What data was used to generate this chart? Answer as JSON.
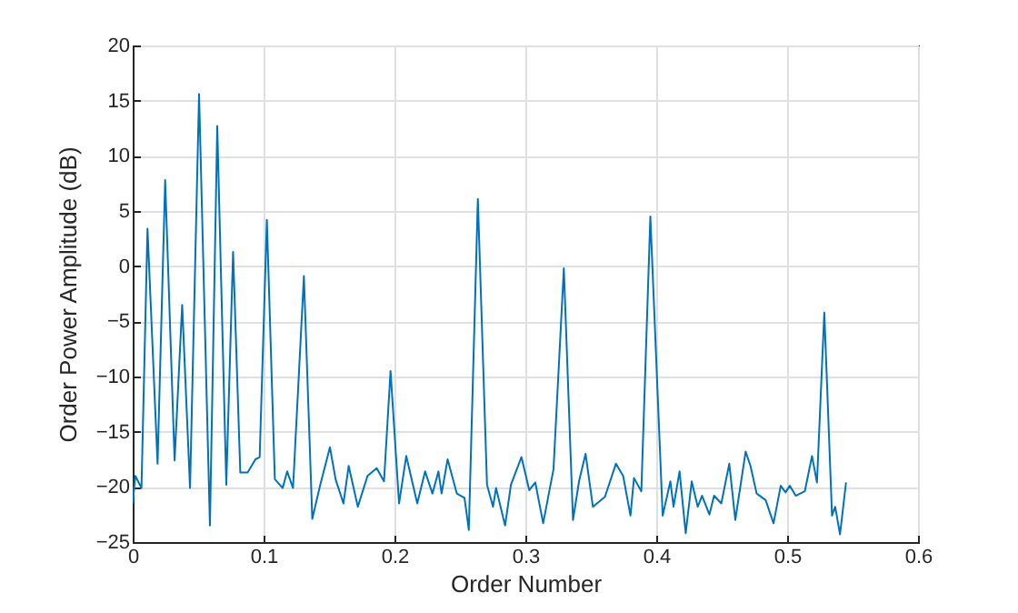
{
  "chart_data": {
    "type": "line",
    "xlabel": "Order Number",
    "ylabel": "Order Power Amplitude (dB)",
    "xlim": [
      0,
      0.6
    ],
    "ylim": [
      -25,
      20
    ],
    "xticks": [
      0,
      0.1,
      0.2,
      0.3,
      0.4,
      0.5,
      0.6
    ],
    "yticks": [
      -25,
      -20,
      -15,
      -10,
      -5,
      0,
      5,
      10,
      15,
      20
    ],
    "grid": true,
    "series": [
      {
        "color": "#0072bd",
        "x": [
          0,
          0.002,
          0.0067,
          0.0113,
          0.019,
          0.0248,
          0.032,
          0.0378,
          0.0438,
          0.0507,
          0.059,
          0.0646,
          0.0715,
          0.0767,
          0.0822,
          0.0878,
          0.0938,
          0.097,
          0.1025,
          0.1086,
          0.1146,
          0.118,
          0.1225,
          0.1308,
          0.1372,
          0.1433,
          0.1507,
          0.155,
          0.161,
          0.165,
          0.172,
          0.1794,
          0.1864,
          0.192,
          0.197,
          0.2035,
          0.209,
          0.2174,
          0.2234,
          0.229,
          0.2336,
          0.236,
          0.2406,
          0.2476,
          0.2535,
          0.2568,
          0.2637,
          0.2707,
          0.2753,
          0.2776,
          0.2845,
          0.289,
          0.297,
          0.303,
          0.3076,
          0.3136,
          0.3215,
          0.3294,
          0.3364,
          0.341,
          0.346,
          0.3516,
          0.3608,
          0.3692,
          0.3747,
          0.3803,
          0.383,
          0.3886,
          0.3955,
          0.4049,
          0.4108,
          0.4132,
          0.4178,
          0.4225,
          0.4271,
          0.4317,
          0.435,
          0.4406,
          0.4442,
          0.4497,
          0.4558,
          0.4604,
          0.4683,
          0.472,
          0.4767,
          0.4836,
          0.4896,
          0.4951,
          0.4988,
          0.502,
          0.5066,
          0.5135,
          0.519,
          0.5228,
          0.5284,
          0.5343,
          0.5367,
          0.5404,
          0.545
        ],
        "values": [
          -21.5,
          -19.0,
          -20.1,
          3.4,
          -17.9,
          7.8,
          -17.6,
          -3.5,
          -20.1,
          15.6,
          -23.5,
          12.7,
          -19.8,
          1.3,
          -18.7,
          -18.7,
          -17.5,
          -17.3,
          4.2,
          -19.3,
          -20.1,
          -18.6,
          -20.1,
          -0.9,
          -22.9,
          -19.8,
          -16.4,
          -19.3,
          -21.5,
          -18.1,
          -21.8,
          -19.0,
          -18.3,
          -19.5,
          -9.5,
          -21.5,
          -17.2,
          -21.5,
          -18.6,
          -20.6,
          -18.6,
          -20.6,
          -17.5,
          -20.6,
          -21.0,
          -23.9,
          6.1,
          -19.8,
          -21.8,
          -20.1,
          -23.5,
          -19.8,
          -17.3,
          -20.3,
          -19.6,
          -23.3,
          -18.4,
          -0.2,
          -23.0,
          -19.5,
          -17.0,
          -21.8,
          -20.9,
          -17.9,
          -19.0,
          -22.6,
          -19.2,
          -20.4,
          4.5,
          -22.6,
          -19.5,
          -21.8,
          -18.6,
          -24.2,
          -19.5,
          -21.8,
          -20.8,
          -22.5,
          -20.8,
          -21.5,
          -17.9,
          -23.0,
          -16.8,
          -18.1,
          -20.6,
          -21.2,
          -23.3,
          -19.9,
          -20.5,
          -19.9,
          -20.8,
          -20.4,
          -17.2,
          -19.6,
          -4.2,
          -22.6,
          -21.8,
          -24.3,
          -19.6
        ]
      }
    ]
  }
}
